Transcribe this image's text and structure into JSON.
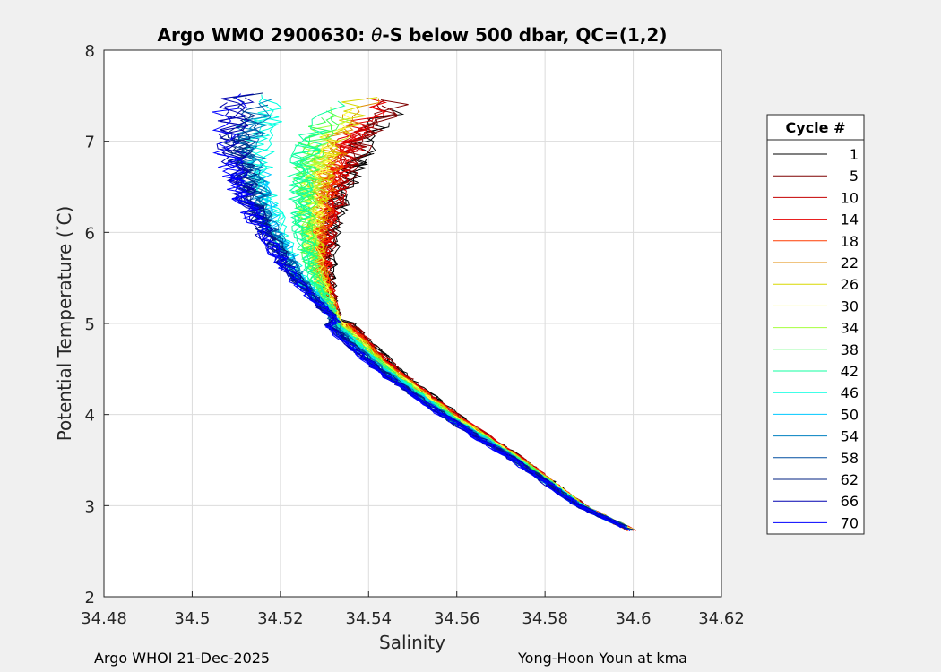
{
  "chart_data": {
    "type": "line",
    "title_prefix": "Argo WMO 2900630: ",
    "title_symbol": "θ",
    "title_suffix": "-S below 500 dbar,  QC=(1,2)",
    "xlabel": "Salinity",
    "ylabel_main": "Potential Temperature (",
    "ylabel_degree": "°",
    "ylabel_end": "C)",
    "xlim": [
      34.48,
      34.62
    ],
    "ylim": [
      2,
      8
    ],
    "xticks": [
      "34.48",
      "34.5",
      "34.52",
      "34.54",
      "34.56",
      "34.58",
      "34.6",
      "34.62"
    ],
    "yticks": [
      "2",
      "3",
      "4",
      "5",
      "6",
      "7",
      "8"
    ],
    "grid": true,
    "legend": {
      "title": "Cycle #",
      "placement": "right",
      "entries": [
        {
          "label": "1",
          "color": "#000000"
        },
        {
          "label": "5",
          "color": "#7f0000"
        },
        {
          "label": "10",
          "color": "#c40000"
        },
        {
          "label": "14",
          "color": "#e60000"
        },
        {
          "label": "18",
          "color": "#ff3c00"
        },
        {
          "label": "22",
          "color": "#e08a00"
        },
        {
          "label": "26",
          "color": "#d8d800"
        },
        {
          "label": "30",
          "color": "#ffff4a"
        },
        {
          "label": "34",
          "color": "#a6ff3f"
        },
        {
          "label": "38",
          "color": "#3cff55"
        },
        {
          "label": "42",
          "color": "#10ffa0"
        },
        {
          "label": "46",
          "color": "#00ffe0"
        },
        {
          "label": "50",
          "color": "#00c8ff"
        },
        {
          "label": "54",
          "color": "#0080c0"
        },
        {
          "label": "58",
          "color": "#004fa0"
        },
        {
          "label": "62",
          "color": "#002080"
        },
        {
          "label": "66",
          "color": "#0000b0"
        },
        {
          "label": "70",
          "color": "#0000ff"
        }
      ]
    },
    "profile_shape": {
      "description": "approximate theta-S profiles per cycle",
      "points_T": [
        2.72,
        3.0,
        3.5,
        4.0,
        4.5,
        5.0,
        5.5,
        6.0,
        6.5,
        7.0,
        7.5
      ],
      "base_S": [
        34.6,
        34.588,
        34.574,
        34.558,
        34.544,
        34.533,
        34.528,
        34.526,
        34.526,
        34.528,
        34.535
      ],
      "fresh_shift_upper": 0.03
    }
  },
  "footer": {
    "left": "Argo WHOI 21-Dec-2025",
    "right": "Yong-Hoon Youn at kma"
  }
}
